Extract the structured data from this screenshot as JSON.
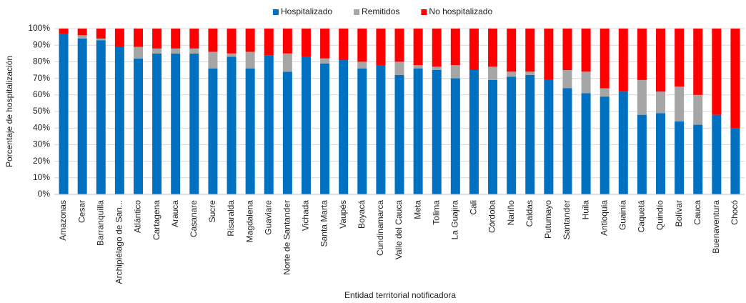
{
  "chart_data": {
    "type": "stacked_bar",
    "x_label": "Entidad territorial notificadora",
    "y_label": "Porcentaje de hospitalización",
    "categories": [
      "Amazonas",
      "Cesar",
      "Barranquilla",
      "Archipiélago de San...",
      "Atlántico",
      "Cartagena",
      "Arauca",
      "Casanare",
      "Sucre",
      "Risaralda",
      "Magdalena",
      "Guaviare",
      "Norte de Santander",
      "Vichada",
      "Santa Marta",
      "Vaupés",
      "Boyacá",
      "Cundinamarca",
      "Valle del Cauca",
      "Meta",
      "Tolima",
      "La Guajira",
      "Cali",
      "Córdoba",
      "Nariño",
      "Caldas",
      "Putumayo",
      "Santander",
      "Huila",
      "Antioquia",
      "Guainía",
      "Caquetá",
      "Quindío",
      "Bolívar",
      "Cauca",
      "Buenaventura",
      "Chocó"
    ],
    "series": [
      {
        "name": "Hospitalizado",
        "color": "#0070c0",
        "values": [
          97,
          94,
          93,
          89,
          82,
          85,
          85,
          85,
          76,
          83,
          76,
          84,
          74,
          83,
          79,
          81,
          76,
          78,
          72,
          76,
          75,
          70,
          75,
          69,
          71,
          72,
          69,
          64,
          61,
          59,
          62,
          48,
          49,
          44,
          42,
          48,
          40
        ]
      },
      {
        "name": "Remitidos",
        "color": "#a6a6a6",
        "values": [
          0,
          2,
          1,
          0,
          7,
          3,
          3,
          3,
          10,
          2,
          10,
          0,
          11,
          0,
          3,
          0,
          4,
          0,
          8,
          2,
          2,
          8,
          0,
          8,
          3,
          2,
          0,
          11,
          13,
          5,
          0,
          21,
          13,
          21,
          18,
          0,
          0
        ]
      },
      {
        "name": "No hospitalizado",
        "color": "#ff0000",
        "values": [
          3,
          4,
          6,
          11,
          11,
          12,
          12,
          12,
          14,
          15,
          14,
          16,
          15,
          17,
          18,
          19,
          20,
          22,
          20,
          22,
          23,
          22,
          25,
          23,
          26,
          26,
          31,
          25,
          26,
          36,
          38,
          31,
          38,
          35,
          40,
          52,
          60
        ]
      }
    ],
    "ylim": [
      0,
      100
    ],
    "yticks": [
      {
        "value": 0,
        "label": "0%"
      },
      {
        "value": 10,
        "label": "10%"
      },
      {
        "value": 20,
        "label": "20%"
      },
      {
        "value": 30,
        "label": "30%"
      },
      {
        "value": 40,
        "label": "40%"
      },
      {
        "value": 50,
        "label": "50%"
      },
      {
        "value": 60,
        "label": "60%"
      },
      {
        "value": 70,
        "label": "70%"
      },
      {
        "value": 80,
        "label": "80%"
      },
      {
        "value": 90,
        "label": "90%"
      },
      {
        "value": 100,
        "label": "100%"
      }
    ],
    "grid": true,
    "legend": "top"
  }
}
